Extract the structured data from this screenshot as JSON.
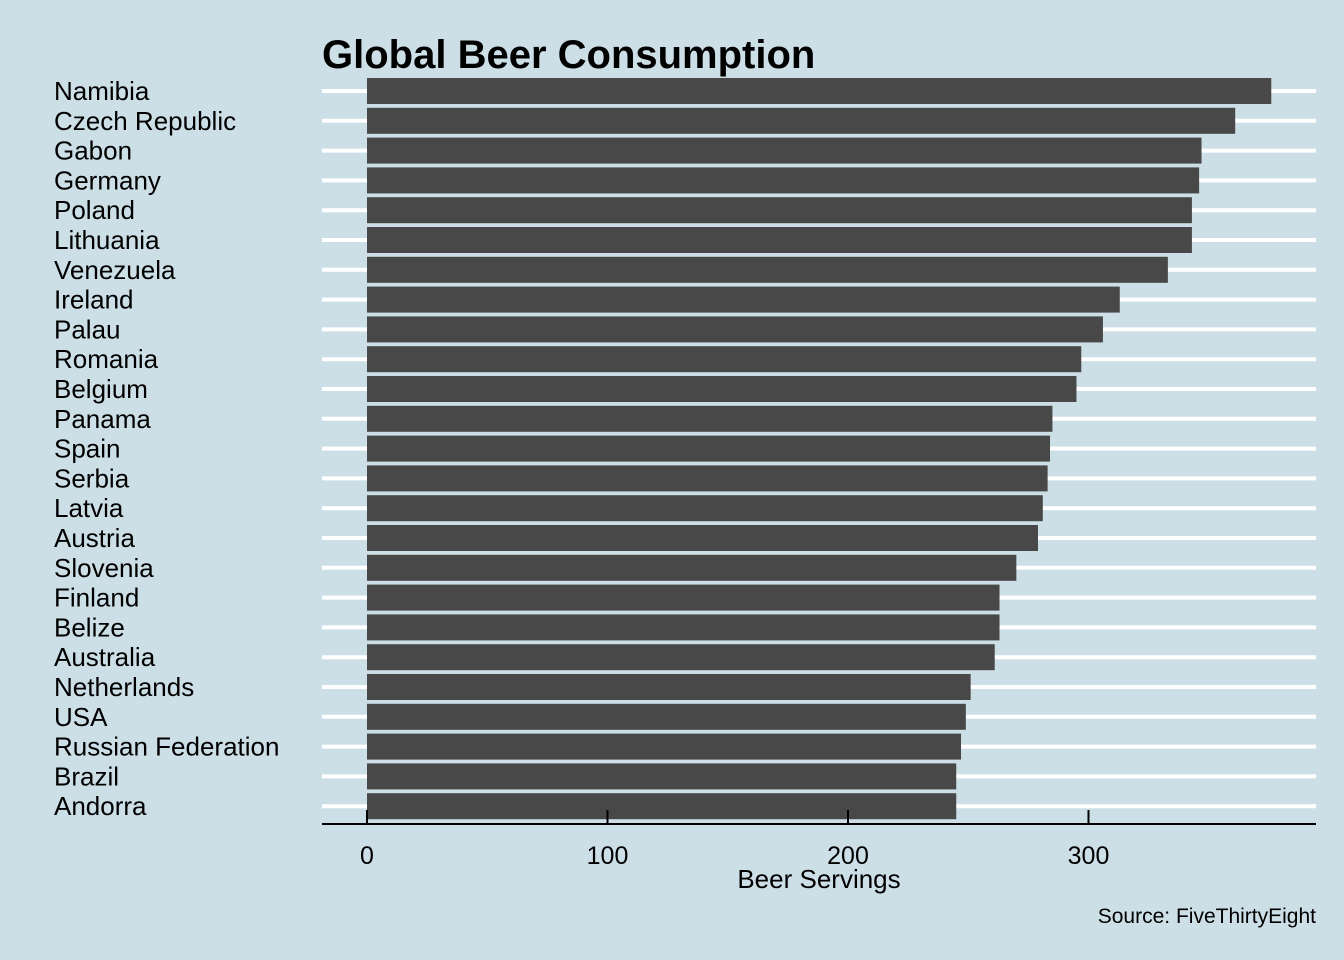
{
  "chart_data": {
    "type": "bar",
    "orientation": "horizontal",
    "title": "Global Beer Consumption",
    "xlabel": "Beer Servings",
    "ylabel": "",
    "caption": "Source: FiveThirtyEight",
    "xlim": [
      0,
      395
    ],
    "xticks": [
      0,
      100,
      200,
      300
    ],
    "grid": "horizontal major lines only",
    "legend": "none",
    "colors": {
      "background": "#cddfe6",
      "bar": "#484848",
      "grid": "#ffffff",
      "axis": "#000000"
    },
    "categories": [
      "Namibia",
      "Czech Republic",
      "Gabon",
      "Germany",
      "Poland",
      "Lithuania",
      "Venezuela",
      "Ireland",
      "Palau",
      "Romania",
      "Belgium",
      "Panama",
      "Spain",
      "Serbia",
      "Latvia",
      "Austria",
      "Slovenia",
      "Finland",
      "Belize",
      "Australia",
      "Netherlands",
      "USA",
      "Russian Federation",
      "Brazil",
      "Andorra"
    ],
    "values": [
      376,
      361,
      347,
      346,
      343,
      343,
      333,
      313,
      306,
      297,
      295,
      285,
      284,
      283,
      281,
      279,
      270,
      263,
      263,
      261,
      251,
      249,
      247,
      245,
      245
    ]
  }
}
